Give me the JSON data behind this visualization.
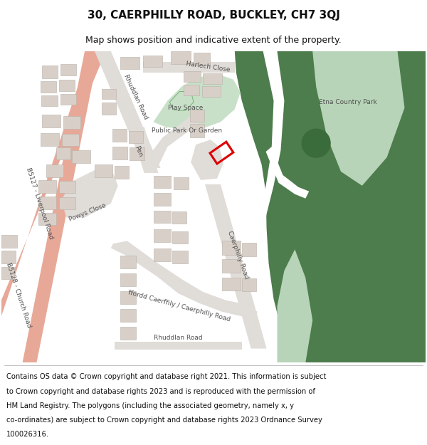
{
  "title": "30, CAERPHILLY ROAD, BUCKLEY, CH7 3QJ",
  "subtitle": "Map shows position and indicative extent of the property.",
  "footer_lines": [
    "Contains OS data © Crown copyright and database right 2021. This information is subject",
    "to Crown copyright and database rights 2023 and is reproduced with the permission of",
    "HM Land Registry. The polygons (including the associated geometry, namely x, y",
    "co-ordinates) are subject to Crown copyright and database rights 2023 Ordnance Survey",
    "100026316."
  ],
  "bg_color": "#f0eeea",
  "green_dark": "#4d7c4d",
  "green_mid": "#6ea86e",
  "green_light": "#b8d4b8",
  "road_salmon": "#e8a898",
  "building_color": "#d8d0c8",
  "building_edge": "#b8b0a8",
  "park_light": "#c8e0c8",
  "white": "#ffffff",
  "red_plot": "#dd0000",
  "text_color": "#505050",
  "footer_text_color": "#101010",
  "title_fontsize": 11,
  "subtitle_fontsize": 9,
  "footer_fontsize": 7.2
}
